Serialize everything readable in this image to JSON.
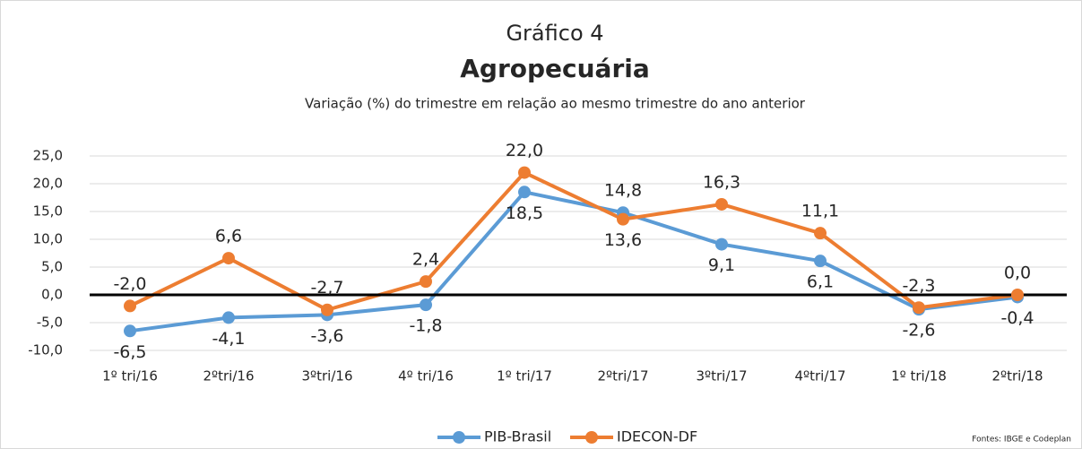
{
  "chart_data": {
    "type": "line",
    "title": "Gráfico 4",
    "subtitle": "Agropecuária",
    "description": "Variação (%) do trimestre em relação ao mesmo trimestre do ano anterior",
    "source": "Fontes: IBGE e Codeplan",
    "categories": [
      "1º tri/16",
      "2ºtri/16",
      "3ºtri/16",
      "4º tri/16",
      "1º tri/17",
      "2ºtri/17",
      "3ºtri/17",
      "4ºtri/17",
      "1º tri/18",
      "2ºtri/18"
    ],
    "series": [
      {
        "name": "PIB-Brasil",
        "color": "#5b9bd5",
        "values": [
          -6.5,
          -4.1,
          -3.6,
          -1.8,
          18.5,
          14.8,
          9.1,
          6.1,
          -2.6,
          -0.4
        ],
        "value_labels": [
          "-6,5",
          "-4,1",
          "-3,6",
          "-1,8",
          "18,5",
          "14,8",
          "9,1",
          "6,1",
          "-2,6",
          "-0,4"
        ]
      },
      {
        "name": "IDECON-DF",
        "color": "#ed7d31",
        "values": [
          -2.0,
          6.6,
          -2.7,
          2.4,
          22.0,
          13.6,
          16.3,
          11.1,
          -2.3,
          0.0
        ],
        "value_labels": [
          "-2,0",
          "6,6",
          "-2,7",
          "2,4",
          "22,0",
          "13,6",
          "16,3",
          "11,1",
          "-2,3",
          "0,0"
        ]
      }
    ],
    "ylim": [
      -10,
      25
    ],
    "yticks": [
      {
        "value": -10,
        "label": "-10,0"
      },
      {
        "value": -5,
        "label": "-5,0"
      },
      {
        "value": 0,
        "label": "0,0"
      },
      {
        "value": 5,
        "label": "5,0"
      },
      {
        "value": 10,
        "label": "10,0"
      },
      {
        "value": 15,
        "label": "15,0"
      },
      {
        "value": 20,
        "label": "20,0"
      },
      {
        "value": 25,
        "label": "25,0"
      }
    ],
    "grid": true,
    "legend": "bottom"
  }
}
